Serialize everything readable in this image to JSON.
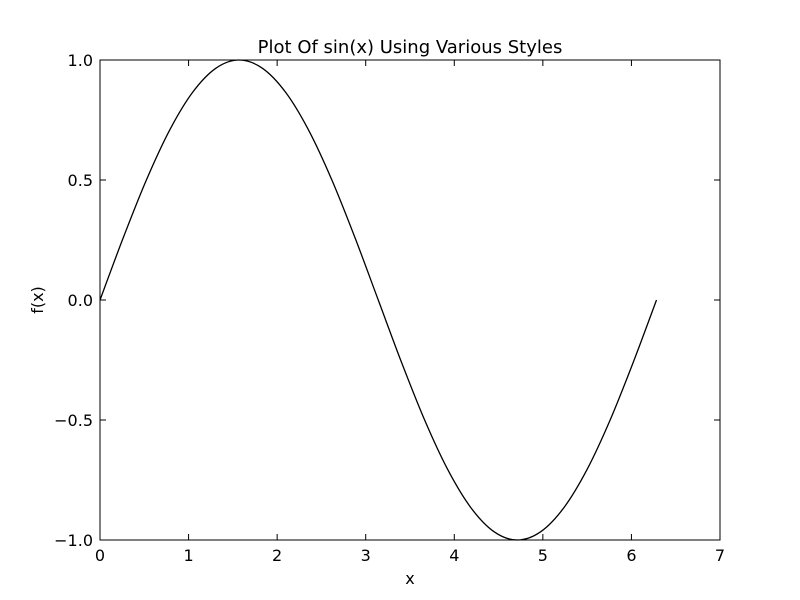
{
  "chart_data": {
    "type": "line",
    "title": "Plot Of sin(x) Using Various Styles",
    "xlabel": "x",
    "ylabel": "f(x)",
    "xlim": [
      0,
      7
    ],
    "ylim": [
      -1.0,
      1.0
    ],
    "grid": false,
    "legend": "none",
    "xticks": [
      0,
      1,
      2,
      3,
      4,
      5,
      6,
      7
    ],
    "xtick_labels": [
      "0",
      "1",
      "2",
      "3",
      "4",
      "5",
      "6",
      "7"
    ],
    "yticks": [
      -1.0,
      -0.5,
      0.0,
      0.5,
      1.0
    ],
    "ytick_labels": [
      "−1.0",
      "−0.5",
      "0.0",
      "0.5",
      "1.0"
    ],
    "series": [
      {
        "color": "#000000",
        "x": [
          0,
          0.2618,
          0.5236,
          0.7854,
          1.0472,
          1.309,
          1.5708,
          1.8326,
          2.0944,
          2.3562,
          2.618,
          2.8798,
          3.1416,
          3.4034,
          3.6652,
          3.927,
          4.1888,
          4.4506,
          4.7124,
          4.9742,
          5.236,
          5.4978,
          5.7596,
          6.0214,
          6.2832
        ],
        "y": [
          0,
          0.2588,
          0.5,
          0.7071,
          0.866,
          0.9659,
          1.0,
          0.9659,
          0.866,
          0.7071,
          0.5,
          0.2588,
          0,
          -0.2588,
          -0.5,
          -0.7071,
          -0.866,
          -0.9659,
          -1.0,
          -0.9659,
          -0.866,
          -0.7071,
          -0.5,
          -0.2588,
          0
        ]
      }
    ]
  }
}
